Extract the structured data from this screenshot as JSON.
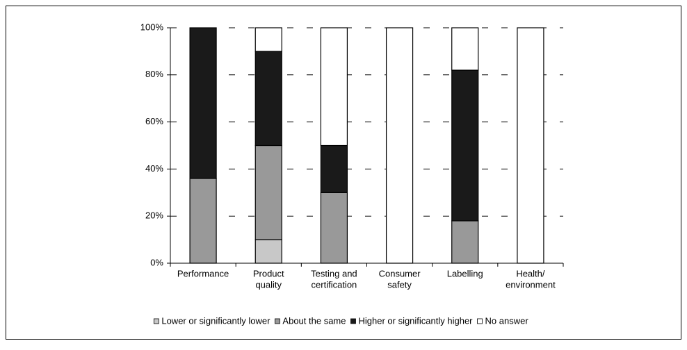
{
  "chart_data": {
    "type": "stacked_bar",
    "categories": [
      [
        "Performance"
      ],
      [
        "Product",
        "quality"
      ],
      [
        "Testing and",
        "certification"
      ],
      [
        "Consumer",
        "safety"
      ],
      [
        "Labelling"
      ],
      [
        "Health/",
        "environment"
      ]
    ],
    "series": [
      {
        "name": "Lower or significantly lower",
        "color": "#c8c8c8",
        "values": [
          0,
          10,
          0,
          0,
          0,
          0
        ]
      },
      {
        "name": "About the same",
        "color": "#999999",
        "values": [
          36,
          40,
          30,
          0,
          18,
          0
        ]
      },
      {
        "name": "Higher or significantly higher",
        "color": "#1a1a1a",
        "values": [
          64,
          40,
          20,
          0,
          64,
          0
        ]
      },
      {
        "name": "No answer",
        "color": "#ffffff",
        "values": [
          0,
          10,
          50,
          100,
          18,
          100
        ]
      }
    ],
    "ylim": [
      0,
      100
    ],
    "yticks": [
      {
        "value": 0,
        "label": "0%"
      },
      {
        "value": 20,
        "label": "20%"
      },
      {
        "value": 40,
        "label": "40%"
      },
      {
        "value": 60,
        "label": "60%"
      },
      {
        "value": 80,
        "label": "80%"
      },
      {
        "value": 100,
        "label": "100%"
      }
    ],
    "grid": true
  }
}
